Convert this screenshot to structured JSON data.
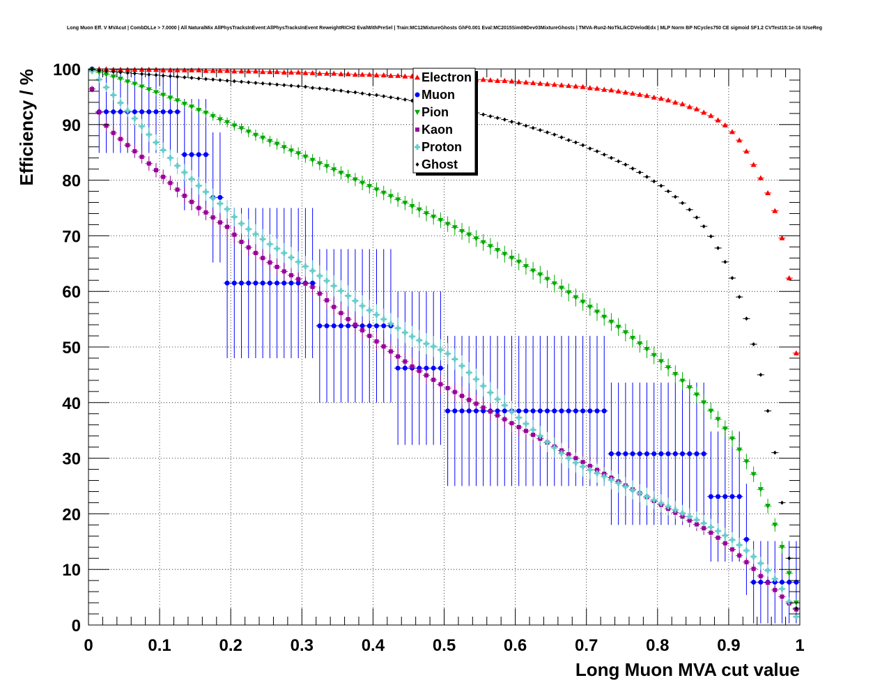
{
  "chart_data": {
    "type": "scatter",
    "title": "Long Muon Eff. V MVAcut | CombDLLe > 7.0000 | All NaturalMix AllPhysTracksInEvent:AllPhysTracksInEvent ReweightRICH2 EvalWithPreSel | Train:MC12MixtureGhosts GhF0.001 Eval:MC2015Sim09Dev03MixtureGhosts | TMVA-Run2-NoTkLikCDVelodEdx | MLP Norm BP NCycles750 CE sigmoid SF1.2 CVTest15:1e-16 !UseReg",
    "xlabel": "Long Muon MVA cut value",
    "ylabel": "Efficiency / %",
    "xlim": [
      0,
      1
    ],
    "ylim": [
      0,
      100
    ],
    "xticks": [
      "0",
      "0.1",
      "0.2",
      "0.3",
      "0.4",
      "0.5",
      "0.6",
      "0.7",
      "0.8",
      "0.9",
      "1"
    ],
    "yticks": [
      "0",
      "10",
      "20",
      "30",
      "40",
      "50",
      "60",
      "70",
      "80",
      "90",
      "100"
    ],
    "grid": true,
    "legend_position": "top-center",
    "x": [
      0.005,
      0.015,
      0.025,
      0.035,
      0.045,
      0.055,
      0.065,
      0.075,
      0.085,
      0.095,
      0.105,
      0.115,
      0.125,
      0.135,
      0.145,
      0.155,
      0.165,
      0.175,
      0.185,
      0.195,
      0.205,
      0.215,
      0.225,
      0.235,
      0.245,
      0.255,
      0.265,
      0.275,
      0.285,
      0.295,
      0.305,
      0.315,
      0.325,
      0.335,
      0.345,
      0.355,
      0.365,
      0.375,
      0.385,
      0.395,
      0.405,
      0.415,
      0.425,
      0.435,
      0.445,
      0.455,
      0.465,
      0.475,
      0.485,
      0.495,
      0.505,
      0.515,
      0.525,
      0.535,
      0.545,
      0.555,
      0.565,
      0.575,
      0.585,
      0.595,
      0.605,
      0.615,
      0.625,
      0.635,
      0.645,
      0.655,
      0.665,
      0.675,
      0.685,
      0.695,
      0.705,
      0.715,
      0.725,
      0.735,
      0.745,
      0.755,
      0.765,
      0.775,
      0.785,
      0.795,
      0.805,
      0.815,
      0.825,
      0.835,
      0.845,
      0.855,
      0.865,
      0.875,
      0.885,
      0.895,
      0.905,
      0.915,
      0.925,
      0.935,
      0.945,
      0.955,
      0.965,
      0.975,
      0.985,
      0.995
    ],
    "series": [
      {
        "name": "Electron",
        "color": "#ff0000",
        "marker": "triangle-up",
        "values": [
          100,
          100,
          100,
          99.9,
          99.9,
          99.9,
          99.9,
          99.9,
          99.9,
          99.9,
          99.8,
          99.8,
          99.8,
          99.8,
          99.8,
          99.8,
          99.7,
          99.7,
          99.7,
          99.7,
          99.6,
          99.6,
          99.6,
          99.6,
          99.5,
          99.5,
          99.5,
          99.4,
          99.4,
          99.4,
          99.3,
          99.3,
          99.2,
          99.2,
          99.2,
          99.1,
          99.1,
          99.0,
          99.0,
          99.0,
          98.9,
          98.9,
          98.8,
          98.8,
          98.7,
          98.7,
          98.6,
          98.6,
          98.5,
          98.5,
          98.4,
          98.3,
          98.3,
          98.2,
          98.1,
          98.1,
          98.0,
          97.9,
          97.9,
          97.8,
          97.7,
          97.6,
          97.5,
          97.4,
          97.3,
          97.2,
          97.1,
          97.0,
          96.9,
          96.8,
          96.6,
          96.5,
          96.3,
          96.2,
          96.0,
          95.8,
          95.6,
          95.4,
          95.2,
          94.9,
          94.7,
          94.4,
          94.0,
          93.7,
          93.2,
          92.8,
          92.2,
          91.6,
          90.8,
          89.9,
          88.7,
          87.2,
          85.2,
          82.8,
          80.4,
          77.7,
          74.5,
          69.6,
          62.4,
          48.9
        ],
        "errors": []
      },
      {
        "name": "Muon",
        "color": "#0000ff",
        "marker": "circle",
        "values": [
          100,
          92.3,
          92.3,
          92.3,
          92.3,
          92.3,
          92.3,
          92.3,
          92.3,
          92.3,
          92.3,
          92.3,
          92.3,
          84.6,
          84.6,
          84.6,
          84.6,
          76.9,
          76.9,
          61.5,
          61.5,
          61.5,
          61.5,
          61.5,
          61.5,
          61.5,
          61.5,
          61.5,
          61.5,
          61.5,
          61.5,
          61.5,
          53.8,
          53.8,
          53.8,
          53.8,
          53.8,
          53.8,
          53.8,
          53.8,
          53.8,
          53.8,
          53.8,
          46.2,
          46.2,
          46.2,
          46.2,
          46.2,
          46.2,
          46.2,
          38.5,
          38.5,
          38.5,
          38.5,
          38.5,
          38.5,
          38.5,
          38.5,
          38.5,
          38.5,
          38.5,
          38.5,
          38.5,
          38.5,
          38.5,
          38.5,
          38.5,
          38.5,
          38.5,
          38.5,
          38.5,
          38.5,
          38.5,
          30.8,
          30.8,
          30.8,
          30.8,
          30.8,
          30.8,
          30.8,
          30.8,
          30.8,
          30.8,
          30.8,
          30.8,
          30.8,
          30.8,
          23.1,
          23.1,
          23.1,
          23.1,
          23.1,
          15.4,
          7.7,
          7.7,
          7.7,
          7.7,
          7.7,
          7.7,
          7.7
        ],
        "errors": [
          0,
          7.4,
          7.4,
          7.4,
          7.4,
          7.4,
          7.4,
          7.4,
          7.4,
          7.4,
          7.4,
          7.4,
          7.4,
          10,
          10,
          10,
          10,
          11.7,
          11.7,
          13.5,
          13.5,
          13.5,
          13.5,
          13.5,
          13.5,
          13.5,
          13.5,
          13.5,
          13.5,
          13.5,
          13.5,
          13.5,
          13.8,
          13.8,
          13.8,
          13.8,
          13.8,
          13.8,
          13.8,
          13.8,
          13.8,
          13.8,
          13.8,
          13.8,
          13.8,
          13.8,
          13.8,
          13.8,
          13.8,
          13.8,
          13.5,
          13.5,
          13.5,
          13.5,
          13.5,
          13.5,
          13.5,
          13.5,
          13.5,
          13.5,
          13.5,
          13.5,
          13.5,
          13.5,
          13.5,
          13.5,
          13.5,
          13.5,
          13.5,
          13.5,
          13.5,
          13.5,
          13.5,
          12.8,
          12.8,
          12.8,
          12.8,
          12.8,
          12.8,
          12.8,
          12.8,
          12.8,
          12.8,
          12.8,
          12.8,
          12.8,
          12.8,
          11.7,
          11.7,
          11.7,
          11.7,
          11.7,
          10,
          7.4,
          7.4,
          7.4,
          7.4,
          7.4,
          7.4,
          7.4
        ]
      },
      {
        "name": "Pion",
        "color": "#00aa00",
        "marker": "triangle-down",
        "values": [
          99.8,
          99.4,
          99.0,
          98.6,
          98.2,
          97.7,
          97.3,
          96.8,
          96.3,
          95.8,
          95.3,
          94.8,
          94.3,
          93.7,
          93.2,
          92.6,
          92.1,
          91.5,
          90.9,
          90.4,
          89.8,
          89.3,
          88.7,
          88.1,
          87.6,
          87.0,
          86.5,
          85.9,
          85.3,
          84.8,
          84.2,
          83.6,
          83.0,
          82.5,
          81.9,
          81.3,
          80.7,
          80.1,
          79.5,
          78.9,
          78.3,
          77.7,
          77.1,
          76.5,
          75.9,
          75.3,
          74.7,
          74.0,
          73.4,
          72.8,
          72.1,
          71.5,
          70.8,
          70.2,
          69.5,
          68.8,
          68.1,
          67.4,
          66.7,
          66.0,
          65.3,
          64.5,
          63.7,
          63.0,
          62.2,
          61.4,
          60.6,
          59.8,
          58.9,
          58.1,
          57.2,
          56.3,
          55.4,
          54.5,
          53.6,
          52.6,
          51.6,
          50.6,
          49.6,
          48.5,
          47.4,
          46.3,
          45.1,
          43.9,
          42.7,
          41.4,
          40.0,
          38.5,
          37.0,
          35.3,
          33.5,
          31.5,
          29.4,
          27.1,
          24.4,
          21.4,
          18.0,
          14.0,
          9.3,
          4.0
        ],
        "errors": [
          0.2,
          0.3,
          0.3,
          0.4,
          0.4,
          0.5,
          0.5,
          0.5,
          0.6,
          0.6,
          0.6,
          0.7,
          0.7,
          0.7,
          0.8,
          0.8,
          0.8,
          0.8,
          0.9,
          0.9,
          0.9,
          0.9,
          1.0,
          1.0,
          1.0,
          1.0,
          1.0,
          1.1,
          1.1,
          1.1,
          1.1,
          1.1,
          1.2,
          1.2,
          1.2,
          1.2,
          1.2,
          1.2,
          1.3,
          1.3,
          1.3,
          1.3,
          1.3,
          1.3,
          1.3,
          1.4,
          1.4,
          1.4,
          1.4,
          1.4,
          1.4,
          1.4,
          1.5,
          1.5,
          1.5,
          1.5,
          1.5,
          1.5,
          1.5,
          1.5,
          1.5,
          1.5,
          1.6,
          1.6,
          1.6,
          1.6,
          1.6,
          1.6,
          1.6,
          1.6,
          1.6,
          1.6,
          1.6,
          1.6,
          1.6,
          1.6,
          1.6,
          1.6,
          1.6,
          1.6,
          1.6,
          1.6,
          1.6,
          1.6,
          1.5,
          1.5,
          1.5,
          1.5,
          1.5,
          1.5,
          1.5,
          1.4,
          1.4,
          1.4,
          1.3,
          1.3,
          1.2,
          1.1,
          0.9,
          0.6
        ]
      },
      {
        "name": "Kaon",
        "color": "#990099",
        "marker": "square",
        "values": [
          96.4,
          92.2,
          89.8,
          88.5,
          87.4,
          86.3,
          85.2,
          84.2,
          83.0,
          81.8,
          80.6,
          79.5,
          78.3,
          77.2,
          76.1,
          75.0,
          74.2,
          73.3,
          72.4,
          71.6,
          70.2,
          68.9,
          67.9,
          66.9,
          66.0,
          65.2,
          64.4,
          63.6,
          62.9,
          62.2,
          61.4,
          60.8,
          59.6,
          58.4,
          57.2,
          56.1,
          55.0,
          54.0,
          53.0,
          52.0,
          51.0,
          50.1,
          49.2,
          48.3,
          47.4,
          46.5,
          45.7,
          44.9,
          44.1,
          43.3,
          42.6,
          41.9,
          41.2,
          40.5,
          39.8,
          39.1,
          38.4,
          37.7,
          37.0,
          36.3,
          35.6,
          34.9,
          34.2,
          33.5,
          32.8,
          32.1,
          31.4,
          30.7,
          30.0,
          29.3,
          28.6,
          27.9,
          27.2,
          26.5,
          25.8,
          25.1,
          24.4,
          23.7,
          23.0,
          22.3,
          21.6,
          20.9,
          20.2,
          19.5,
          18.8,
          18.1,
          17.4,
          16.6,
          15.7,
          14.7,
          13.6,
          12.5,
          11.3,
          10.1,
          8.8,
          7.6,
          6.3,
          5.1,
          3.9,
          2.8
        ],
        "errors": [
          0.6,
          0.9,
          1.0,
          1.1,
          1.1,
          1.2,
          1.2,
          1.2,
          1.3,
          1.3,
          1.3,
          1.3,
          1.4,
          1.4,
          1.4,
          1.4,
          1.4,
          1.4,
          1.5,
          1.5,
          1.5,
          1.5,
          1.5,
          1.5,
          1.5,
          1.5,
          1.5,
          1.6,
          1.6,
          1.6,
          1.6,
          1.6,
          1.6,
          1.6,
          1.6,
          1.6,
          1.6,
          1.6,
          1.6,
          1.6,
          1.6,
          1.6,
          1.6,
          1.6,
          1.6,
          1.6,
          1.6,
          1.6,
          1.6,
          1.6,
          1.6,
          1.6,
          1.6,
          1.6,
          1.6,
          1.6,
          1.6,
          1.6,
          1.6,
          1.6,
          1.6,
          1.5,
          1.5,
          1.5,
          1.5,
          1.5,
          1.5,
          1.5,
          1.5,
          1.5,
          1.5,
          1.4,
          1.4,
          1.4,
          1.4,
          1.4,
          1.4,
          1.4,
          1.4,
          1.3,
          1.3,
          1.3,
          1.3,
          1.3,
          1.2,
          1.2,
          1.2,
          1.2,
          1.1,
          1.1,
          1.1,
          1.0,
          1.0,
          0.9,
          0.9,
          0.8,
          0.7,
          0.7,
          0.6,
          0.5
        ]
      },
      {
        "name": "Proton",
        "color": "#66cccc",
        "marker": "cross",
        "values": [
          99.6,
          98.1,
          96.7,
          95.3,
          93.9,
          92.5,
          91.1,
          89.7,
          88.2,
          86.8,
          85.4,
          84.0,
          82.6,
          81.4,
          80.2,
          79.0,
          77.9,
          76.8,
          75.8,
          74.8,
          73.4,
          72.2,
          71.2,
          70.3,
          69.4,
          68.5,
          67.7,
          66.9,
          66.1,
          65.3,
          64.5,
          63.7,
          62.8,
          61.9,
          61.0,
          60.1,
          59.2,
          58.3,
          57.4,
          56.6,
          55.8,
          55.0,
          54.2,
          53.4,
          52.6,
          51.9,
          51.2,
          50.6,
          50.1,
          49.5,
          48.8,
          47.8,
          46.6,
          45.4,
          44.2,
          43.0,
          41.8,
          40.6,
          39.5,
          38.4,
          37.3,
          36.2,
          35.1,
          34.0,
          32.9,
          31.9,
          30.9,
          30.0,
          29.2,
          28.5,
          27.9,
          27.3,
          26.7,
          26.1,
          25.5,
          24.9,
          24.3,
          23.7,
          23.1,
          22.5,
          21.9,
          21.3,
          20.7,
          20.1,
          19.5,
          18.9,
          18.3,
          17.6,
          16.9,
          16.1,
          15.3,
          14.4,
          13.4,
          12.3,
          11.1,
          9.8,
          8.3,
          6.5,
          4.2,
          1.5
        ],
        "errors": [
          0.3,
          0.6,
          0.8,
          0.9,
          1.0,
          1.1,
          1.2,
          1.3,
          1.3,
          1.4,
          1.4,
          1.5,
          1.5,
          1.5,
          1.6,
          1.6,
          1.6,
          1.7,
          1.7,
          1.7,
          1.7,
          1.8,
          1.8,
          1.8,
          1.8,
          1.8,
          1.8,
          1.8,
          1.9,
          1.9,
          1.9,
          1.9,
          1.9,
          1.9,
          1.9,
          1.9,
          1.9,
          1.9,
          1.9,
          1.9,
          1.9,
          1.9,
          1.9,
          1.9,
          1.9,
          1.9,
          1.9,
          1.9,
          1.9,
          1.9,
          1.9,
          1.9,
          1.9,
          1.9,
          1.9,
          1.9,
          1.9,
          1.9,
          1.9,
          1.9,
          1.9,
          1.9,
          1.8,
          1.8,
          1.8,
          1.8,
          1.8,
          1.8,
          1.8,
          1.8,
          1.7,
          1.7,
          1.7,
          1.7,
          1.7,
          1.7,
          1.7,
          1.6,
          1.6,
          1.6,
          1.6,
          1.6,
          1.6,
          1.5,
          1.5,
          1.5,
          1.5,
          1.5,
          1.4,
          1.4,
          1.4,
          1.3,
          1.3,
          1.3,
          1.2,
          1.1,
          1.1,
          1.0,
          0.8,
          0.5
        ]
      },
      {
        "name": "Ghost",
        "color": "#000000",
        "marker": "diamond",
        "values": [
          99.9,
          99.7,
          99.6,
          99.5,
          99.4,
          99.3,
          99.2,
          99.1,
          99.0,
          98.9,
          98.8,
          98.7,
          98.6,
          98.5,
          98.4,
          98.3,
          98.2,
          98.1,
          98.0,
          97.9,
          97.8,
          97.7,
          97.6,
          97.5,
          97.4,
          97.3,
          97.2,
          97.1,
          97.0,
          96.9,
          96.8,
          96.6,
          96.5,
          96.4,
          96.2,
          96.1,
          95.9,
          95.8,
          95.6,
          95.4,
          95.3,
          95.1,
          94.9,
          94.7,
          94.5,
          94.3,
          94.1,
          93.9,
          93.7,
          93.4,
          93.2,
          92.9,
          92.7,
          92.4,
          92.1,
          91.8,
          91.5,
          91.2,
          90.9,
          90.5,
          90.2,
          89.8,
          89.4,
          89.0,
          88.6,
          88.2,
          87.7,
          87.2,
          86.8,
          86.3,
          85.7,
          85.2,
          84.6,
          84.0,
          83.4,
          82.8,
          82.1,
          81.4,
          80.6,
          79.8,
          79.0,
          78.0,
          77.0,
          75.9,
          74.7,
          73.3,
          71.7,
          69.9,
          67.8,
          65.3,
          62.4,
          59.0,
          55.1,
          50.5,
          45.0,
          38.5,
          31.0,
          22.0,
          12.0,
          3.0
        ],
        "errors": []
      }
    ]
  }
}
